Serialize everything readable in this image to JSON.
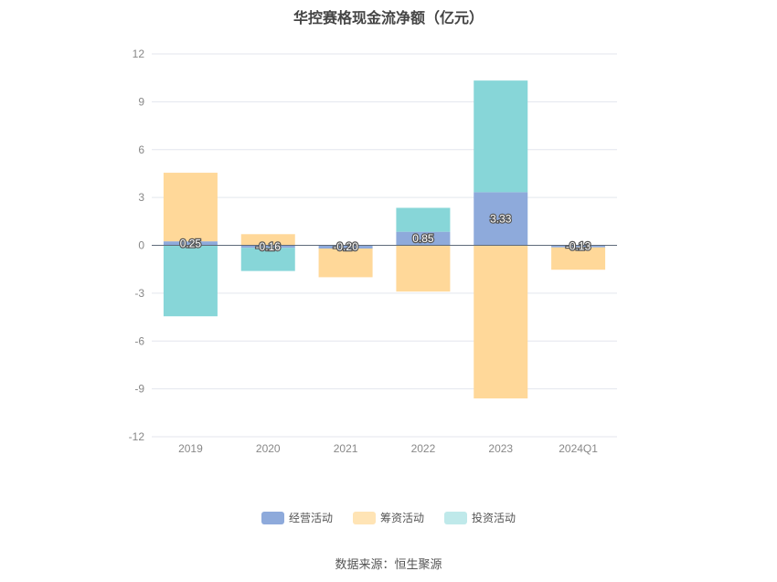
{
  "chart_data": {
    "type": "bar",
    "stacked": true,
    "title": "华控赛格现金流净额（亿元）",
    "categories": [
      "2019",
      "2020",
      "2021",
      "2022",
      "2023",
      "2024Q1"
    ],
    "ylim": [
      -12,
      12
    ],
    "yticks": [
      12,
      9,
      6,
      3,
      0,
      -3,
      -6,
      -9,
      -12
    ],
    "grid": true,
    "legend_position": "bottom",
    "series": [
      {
        "name": "经营活动",
        "color": "#8eaadb",
        "values": [
          0.25,
          -0.16,
          -0.2,
          0.85,
          3.33,
          -0.13
        ],
        "labels": [
          "0.25",
          "-0.16",
          "-0.20",
          "0.85",
          "3.33",
          "-0.13"
        ]
      },
      {
        "name": "筹资活动",
        "color": "#ffd899",
        "values": [
          4.3,
          0.7,
          -1.8,
          -2.9,
          -9.6,
          -1.4
        ]
      },
      {
        "name": "投资活动",
        "color": "#87d6d8",
        "values": [
          -4.45,
          -1.45,
          0.0,
          1.5,
          7.0,
          0.0
        ]
      }
    ]
  },
  "legend": [
    {
      "label": "经营活动",
      "color": "#8eaadb"
    },
    {
      "label": "筹资活动",
      "color": "#ffe4b5"
    },
    {
      "label": "投资活动",
      "color": "#bfe9ea"
    }
  ],
  "source": "数据来源：恒生聚源"
}
